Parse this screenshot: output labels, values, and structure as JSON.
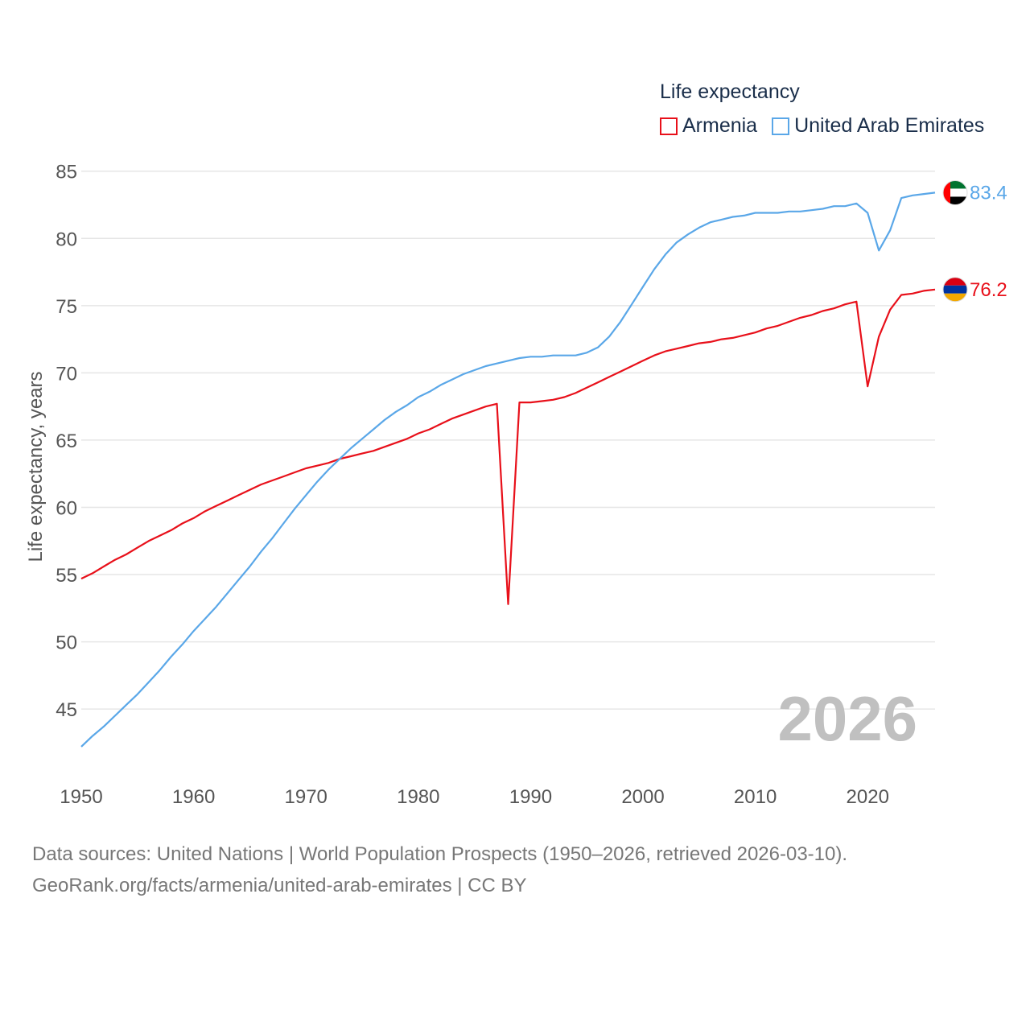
{
  "legend": {
    "title": "Life expectancy",
    "items": [
      {
        "label": "Armenia",
        "color": "#e8101a"
      },
      {
        "label": "United Arab Emirates",
        "color": "#5aa7e8"
      }
    ]
  },
  "footer": {
    "line1": "Data sources: United Nations | World Population Prospects (1950–2026, retrieved 2026-03-10).",
    "line2": "GeoRank.org/facts/armenia/united-arab-emirates | CC BY"
  },
  "chart_data": {
    "type": "line",
    "title": "Life expectancy",
    "xlabel": "",
    "ylabel": "Life expectancy, years",
    "xlim": [
      1950,
      2026
    ],
    "ylim": [
      41,
      86
    ],
    "xticks": [
      1950,
      1960,
      1970,
      1980,
      1990,
      2000,
      2010,
      2020
    ],
    "yticks": [
      45,
      50,
      55,
      60,
      65,
      70,
      75,
      80,
      85
    ],
    "grid": true,
    "legend_position": "top-right",
    "year_label": "2026",
    "x": [
      1950,
      1951,
      1952,
      1953,
      1954,
      1955,
      1956,
      1957,
      1958,
      1959,
      1960,
      1961,
      1962,
      1963,
      1964,
      1965,
      1966,
      1967,
      1968,
      1969,
      1970,
      1971,
      1972,
      1973,
      1974,
      1975,
      1976,
      1977,
      1978,
      1979,
      1980,
      1981,
      1982,
      1983,
      1984,
      1985,
      1986,
      1987,
      1988,
      1989,
      1990,
      1991,
      1992,
      1993,
      1994,
      1995,
      1996,
      1997,
      1998,
      1999,
      2000,
      2001,
      2002,
      2003,
      2004,
      2005,
      2006,
      2007,
      2008,
      2009,
      2010,
      2011,
      2012,
      2013,
      2014,
      2015,
      2016,
      2017,
      2018,
      2019,
      2020,
      2021,
      2022,
      2023,
      2024,
      2025,
      2026
    ],
    "series": [
      {
        "name": "Armenia",
        "color": "#e8101a",
        "end_label": "76.2",
        "flag": "armenia-flag",
        "values": [
          54.7,
          55.1,
          55.6,
          56.1,
          56.5,
          57.0,
          57.5,
          57.9,
          58.3,
          58.8,
          59.2,
          59.7,
          60.1,
          60.5,
          60.9,
          61.3,
          61.7,
          62.0,
          62.3,
          62.6,
          62.9,
          63.1,
          63.3,
          63.6,
          63.8,
          64.0,
          64.2,
          64.5,
          64.8,
          65.1,
          65.5,
          65.8,
          66.2,
          66.6,
          66.9,
          67.2,
          67.5,
          67.7,
          52.8,
          67.8,
          67.8,
          67.9,
          68.0,
          68.2,
          68.5,
          68.9,
          69.3,
          69.7,
          70.1,
          70.5,
          70.9,
          71.3,
          71.6,
          71.8,
          72.0,
          72.2,
          72.3,
          72.5,
          72.6,
          72.8,
          73.0,
          73.3,
          73.5,
          73.8,
          74.1,
          74.3,
          74.6,
          74.8,
          75.1,
          75.3,
          69.0,
          72.7,
          74.7,
          75.8,
          75.9,
          76.1,
          76.2
        ]
      },
      {
        "name": "United Arab Emirates",
        "color": "#5aa7e8",
        "end_label": "83.4",
        "flag": "uae-flag",
        "values": [
          42.2,
          43.0,
          43.7,
          44.5,
          45.3,
          46.1,
          47.0,
          47.9,
          48.9,
          49.8,
          50.8,
          51.7,
          52.6,
          53.6,
          54.6,
          55.6,
          56.7,
          57.7,
          58.8,
          59.9,
          60.9,
          61.9,
          62.8,
          63.6,
          64.4,
          65.1,
          65.8,
          66.5,
          67.1,
          67.6,
          68.2,
          68.6,
          69.1,
          69.5,
          69.9,
          70.2,
          70.5,
          70.7,
          70.9,
          71.1,
          71.2,
          71.2,
          71.3,
          71.3,
          71.3,
          71.5,
          71.9,
          72.7,
          73.8,
          75.1,
          76.4,
          77.7,
          78.8,
          79.7,
          80.3,
          80.8,
          81.2,
          81.4,
          81.6,
          81.7,
          81.9,
          81.9,
          81.9,
          82.0,
          82.0,
          82.1,
          82.2,
          82.4,
          82.4,
          82.6,
          81.9,
          79.1,
          80.6,
          83.0,
          83.2,
          83.3,
          83.4
        ]
      }
    ]
  }
}
